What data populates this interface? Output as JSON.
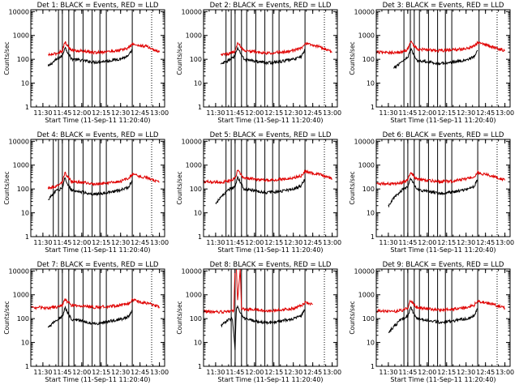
{
  "colors": {
    "events": "#000000",
    "lld": "#e00000",
    "axis": "#000000",
    "background": "#ffffff"
  },
  "chart_data": [
    {
      "type": "line",
      "detector": "1",
      "title": "Det 1: BLACK = Events, RED = LLD",
      "xlabel": "Start Time (11-Sep-11 11:20:40)",
      "ylabel": "Counts/sec",
      "xticks": [
        "11:30",
        "11:45",
        "12:00",
        "12:15",
        "12:30",
        "12:45",
        "13:00"
      ],
      "yticks": [
        "1",
        "10",
        "100",
        "1000",
        "10000"
      ],
      "ylog": true,
      "ylim": [
        1,
        12000
      ],
      "xlim": [
        "11:20:40",
        "13:04:00"
      ],
      "vlines": [
        "11:42",
        "11:45",
        "11:50",
        "11:54",
        "12:01",
        "12:08",
        "12:14",
        "12:19",
        "12:39"
      ],
      "series": [
        {
          "name": "Events",
          "x": [
            "11:34",
            "11:40",
            "11:45",
            "11:47",
            "11:52",
            "12:00",
            "12:10",
            "12:20",
            "12:30",
            "12:36",
            "12:39"
          ],
          "values": [
            50,
            95,
            140,
            320,
            105,
            90,
            75,
            85,
            105,
            135,
            250
          ]
        },
        {
          "name": "LLD",
          "x": [
            "11:34",
            "11:40",
            "11:45",
            "11:47",
            "11:52",
            "12:00",
            "12:10",
            "12:20",
            "12:30",
            "12:36",
            "12:39",
            "12:45",
            "12:50",
            "12:55",
            "13:00"
          ],
          "values": [
            150,
            170,
            230,
            520,
            240,
            220,
            190,
            210,
            240,
            300,
            430,
            370,
            350,
            260,
            200
          ]
        }
      ]
    },
    {
      "type": "line",
      "detector": "2",
      "title": "Det 2: BLACK = Events, RED = LLD",
      "xlabel": "Start Time (11-Sep-11 11:20:40)",
      "ylabel": "Counts/sec",
      "xticks": [
        "11:30",
        "11:45",
        "12:00",
        "12:15",
        "12:30",
        "12:45",
        "13:00"
      ],
      "yticks": [
        "1",
        "10",
        "100",
        "1000",
        "10000"
      ],
      "ylog": true,
      "ylim": [
        1,
        12000
      ],
      "xlim": [
        "11:20:40",
        "13:04:00"
      ],
      "vlines": [
        "11:38",
        "11:42",
        "11:45",
        "11:50",
        "11:54",
        "12:01",
        "12:08",
        "12:14",
        "12:19",
        "12:39"
      ],
      "series": [
        {
          "name": "Events",
          "x": [
            "11:34",
            "11:40",
            "11:45",
            "11:47",
            "11:52",
            "12:00",
            "12:10",
            "12:20",
            "12:30",
            "12:36",
            "12:39"
          ],
          "values": [
            60,
            90,
            135,
            300,
            100,
            85,
            70,
            80,
            100,
            130,
            260
          ]
        },
        {
          "name": "LLD",
          "x": [
            "11:34",
            "11:40",
            "11:45",
            "11:47",
            "11:52",
            "12:00",
            "12:10",
            "12:20",
            "12:30",
            "12:36",
            "12:39",
            "12:45",
            "12:50",
            "12:55",
            "13:00"
          ],
          "values": [
            160,
            170,
            220,
            480,
            230,
            210,
            180,
            200,
            230,
            290,
            450,
            380,
            340,
            260,
            200
          ]
        }
      ]
    },
    {
      "type": "line",
      "detector": "3",
      "title": "Det 3: BLACK = Events, RED = LLD",
      "xlabel": "Start Time (11-Sep-11 11:20:40)",
      "ylabel": "Counts/sec",
      "xticks": [
        "11:30",
        "11:45",
        "12:00",
        "12:15",
        "12:30",
        "12:45",
        "13:00"
      ],
      "yticks": [
        "1",
        "10",
        "100",
        "1000",
        "10000"
      ],
      "ylog": true,
      "ylim": [
        1,
        12000
      ],
      "xlim": [
        "11:20:40",
        "13:04:00"
      ],
      "vlines": [
        "11:42",
        "11:47",
        "11:50",
        "11:54",
        "12:01",
        "12:08",
        "12:14",
        "12:19",
        "12:40"
      ],
      "series": [
        {
          "name": "Events",
          "x": [
            "11:34",
            "11:40",
            "11:45",
            "11:47",
            "11:52",
            "12:00",
            "12:10",
            "12:20",
            "12:30",
            "12:36",
            "12:39"
          ],
          "values": [
            40,
            80,
            120,
            290,
            90,
            80,
            65,
            75,
            95,
            120,
            240
          ]
        },
        {
          "name": "LLD",
          "x": [
            "11:20:40",
            "11:34",
            "11:40",
            "11:45",
            "11:47",
            "11:52",
            "12:00",
            "12:10",
            "12:20",
            "12:30",
            "12:36",
            "12:39",
            "12:45",
            "12:50",
            "12:55",
            "13:00"
          ],
          "values": [
            200,
            190,
            200,
            260,
            560,
            270,
            250,
            230,
            250,
            280,
            350,
            500,
            400,
            340,
            280,
            230
          ]
        }
      ]
    },
    {
      "type": "line",
      "detector": "4",
      "title": "Det 4: BLACK = Events, RED = LLD",
      "xlabel": "Start Time (11-Sep-11 11:20:40)",
      "ylabel": "Counts/sec",
      "xticks": [
        "11:30",
        "11:45",
        "12:00",
        "12:15",
        "12:30",
        "12:45",
        "13:00"
      ],
      "yticks": [
        "1",
        "10",
        "100",
        "1000",
        "10000"
      ],
      "ylog": true,
      "ylim": [
        1,
        12000
      ],
      "xlim": [
        "11:20:40",
        "13:04:00"
      ],
      "vlines": [
        "11:38",
        "11:42",
        "11:45",
        "11:50",
        "11:54",
        "12:01",
        "12:08",
        "12:14",
        "12:19",
        "12:39"
      ],
      "series": [
        {
          "name": "Events",
          "x": [
            "11:34",
            "11:40",
            "11:45",
            "11:47",
            "11:52",
            "12:00",
            "12:10",
            "12:20",
            "12:30",
            "12:36",
            "12:39"
          ],
          "values": [
            35,
            80,
            110,
            280,
            85,
            75,
            60,
            70,
            90,
            115,
            230
          ]
        },
        {
          "name": "LLD",
          "x": [
            "11:34",
            "11:40",
            "11:45",
            "11:47",
            "11:52",
            "12:00",
            "12:10",
            "12:20",
            "12:30",
            "12:36",
            "12:39",
            "12:45",
            "12:50",
            "12:55",
            "13:00"
          ],
          "values": [
            110,
            130,
            200,
            470,
            210,
            190,
            160,
            180,
            210,
            270,
            400,
            330,
            300,
            240,
            190
          ]
        }
      ]
    },
    {
      "type": "line",
      "detector": "5",
      "title": "Det 5: BLACK = Events, RED = LLD",
      "xlabel": "Start Time (11-Sep-11 11:20:40)",
      "ylabel": "Counts/sec",
      "xticks": [
        "11:30",
        "11:45",
        "12:00",
        "12:15",
        "12:30",
        "12:45",
        "13:00"
      ],
      "yticks": [
        "1",
        "10",
        "100",
        "1000",
        "10000"
      ],
      "ylog": true,
      "ylim": [
        1,
        12000
      ],
      "xlim": [
        "11:20:40",
        "13:04:00"
      ],
      "vlines": [
        "11:38",
        "11:42",
        "11:45",
        "11:50",
        "11:54",
        "12:01",
        "12:08",
        "12:14",
        "12:19",
        "12:39"
      ],
      "series": [
        {
          "name": "Events",
          "x": [
            "11:30",
            "11:34",
            "11:40",
            "11:45",
            "11:47",
            "11:52",
            "12:00",
            "12:10",
            "12:20",
            "12:30",
            "12:36",
            "12:39"
          ],
          "values": [
            25,
            45,
            90,
            130,
            320,
            100,
            85,
            70,
            80,
            100,
            135,
            260
          ]
        },
        {
          "name": "LLD",
          "x": [
            "11:20:40",
            "11:34",
            "11:40",
            "11:45",
            "11:47",
            "11:52",
            "12:00",
            "12:10",
            "12:20",
            "12:30",
            "12:36",
            "12:39",
            "12:45",
            "12:50",
            "12:55",
            "13:00"
          ],
          "values": [
            200,
            190,
            210,
            280,
            600,
            290,
            260,
            230,
            250,
            290,
            360,
            550,
            460,
            410,
            330,
            260
          ]
        }
      ]
    },
    {
      "type": "line",
      "detector": "6",
      "title": "Det 6: BLACK = Events, RED = LLD",
      "xlabel": "Start Time (11-Sep-11 11:20:40)",
      "ylabel": "Counts/sec",
      "xticks": [
        "11:30",
        "11:45",
        "12:00",
        "12:15",
        "12:30",
        "12:45",
        "13:00"
      ],
      "yticks": [
        "1",
        "10",
        "100",
        "1000",
        "10000"
      ],
      "ylog": true,
      "ylim": [
        1,
        12000
      ],
      "xlim": [
        "11:20:40",
        "13:04:00"
      ],
      "vlines": [
        "11:42",
        "11:45",
        "11:50",
        "11:54",
        "12:01",
        "12:08",
        "12:14",
        "12:19",
        "12:39"
      ],
      "series": [
        {
          "name": "Events",
          "x": [
            "11:30",
            "11:34",
            "11:40",
            "11:45",
            "11:47",
            "11:52",
            "12:00",
            "12:10",
            "12:20",
            "12:30",
            "12:36",
            "12:39"
          ],
          "values": [
            20,
            40,
            85,
            120,
            300,
            95,
            80,
            65,
            75,
            95,
            125,
            250
          ]
        },
        {
          "name": "LLD",
          "x": [
            "11:20:40",
            "11:34",
            "11:40",
            "11:45",
            "11:47",
            "11:52",
            "12:00",
            "12:10",
            "12:20",
            "12:30",
            "12:36",
            "12:39",
            "12:45",
            "12:50",
            "12:55",
            "13:00"
          ],
          "values": [
            170,
            160,
            180,
            240,
            520,
            250,
            230,
            200,
            220,
            260,
            320,
            480,
            400,
            360,
            290,
            230
          ]
        }
      ]
    },
    {
      "type": "line",
      "detector": "7",
      "title": "Det 7: BLACK = Events, RED = LLD",
      "xlabel": "Start Time (11-Sep-11 11:20:40)",
      "ylabel": "Counts/sec",
      "xticks": [
        "11:30",
        "11:45",
        "12:00",
        "12:15",
        "12:30",
        "12:45",
        "13:00"
      ],
      "yticks": [
        "1",
        "10",
        "100",
        "1000",
        "10000"
      ],
      "ylog": true,
      "ylim": [
        1,
        12000
      ],
      "xlim": [
        "11:20:40",
        "13:04:00"
      ],
      "vlines": [
        "11:42",
        "11:45",
        "11:50",
        "11:54",
        "12:01",
        "12:08",
        "12:14",
        "12:19",
        "12:39"
      ],
      "series": [
        {
          "name": "Events",
          "x": [
            "11:34",
            "11:40",
            "11:45",
            "11:47",
            "11:52",
            "12:00",
            "12:10",
            "12:20",
            "12:30",
            "12:36",
            "12:39"
          ],
          "values": [
            40,
            85,
            120,
            290,
            95,
            80,
            60,
            75,
            95,
            120,
            240
          ]
        },
        {
          "name": "LLD",
          "x": [
            "11:20:40",
            "11:34",
            "11:40",
            "11:45",
            "11:47",
            "11:52",
            "12:00",
            "12:10",
            "12:20",
            "12:30",
            "12:36",
            "12:39",
            "12:45",
            "12:50",
            "12:55",
            "13:00"
          ],
          "values": [
            300,
            280,
            300,
            360,
            650,
            370,
            340,
            300,
            320,
            360,
            430,
            620,
            500,
            450,
            380,
            300
          ]
        }
      ]
    },
    {
      "type": "line",
      "detector": "8",
      "title": "Det 8: BLACK = Events, RED = LLD",
      "xlabel": "Start Time (11-Sep-11 11:20:40)",
      "ylabel": "Counts/sec",
      "xticks": [
        "11:30",
        "11:45",
        "12:00",
        "12:15",
        "12:30",
        "12:45",
        "13:00"
      ],
      "yticks": [
        "1",
        "10",
        "100",
        "1000",
        "10000"
      ],
      "ylog": true,
      "ylim": [
        1,
        12000
      ],
      "xlim": [
        "11:20:40",
        "13:04:00"
      ],
      "vlines": [
        "11:42",
        "11:45",
        "11:50",
        "11:54",
        "12:01",
        "12:08",
        "12:14",
        "12:19",
        "12:39"
      ],
      "series": [
        {
          "name": "Events",
          "x": [
            "11:34",
            "11:40",
            "11:43",
            "11:45",
            "11:46",
            "11:47",
            "11:52",
            "12:00",
            "12:10",
            "12:20",
            "12:30",
            "12:36",
            "12:39"
          ],
          "values": [
            50,
            90,
            100,
            5,
            280,
            300,
            100,
            80,
            65,
            80,
            100,
            125,
            250
          ]
        },
        {
          "name": "LLD",
          "x": [
            "11:20:40",
            "11:34",
            "11:40",
            "11:44",
            "11:45",
            "11:46",
            "11:47",
            "11:49",
            "11:50",
            "11:52",
            "12:00",
            "12:10",
            "12:20",
            "12:30",
            "12:36",
            "12:39",
            "12:45"
          ],
          "values": [
            200,
            190,
            200,
            210,
            12000,
            12000,
            600,
            12000,
            250,
            250,
            240,
            210,
            230,
            270,
            340,
            480,
            400
          ]
        }
      ]
    },
    {
      "type": "line",
      "detector": "9",
      "title": "Det 9: BLACK = Events, RED = LLD",
      "xlabel": "Start Time (11-Sep-11 11:20:40)",
      "ylabel": "Counts/sec",
      "xticks": [
        "11:30",
        "11:45",
        "12:00",
        "12:15",
        "12:30",
        "12:45",
        "13:00"
      ],
      "yticks": [
        "1",
        "10",
        "100",
        "1000",
        "10000"
      ],
      "ylog": true,
      "ylim": [
        1,
        12000
      ],
      "xlim": [
        "11:20:40",
        "13:04:00"
      ],
      "vlines": [
        "11:42",
        "11:45",
        "11:50",
        "11:54",
        "12:01",
        "12:08",
        "12:14",
        "12:19",
        "12:39"
      ],
      "series": [
        {
          "name": "Events",
          "x": [
            "11:30",
            "11:34",
            "11:40",
            "11:45",
            "11:47",
            "11:52",
            "12:00",
            "12:10",
            "12:20",
            "12:30",
            "12:36",
            "12:39"
          ],
          "values": [
            25,
            45,
            95,
            125,
            300,
            100,
            85,
            70,
            80,
            100,
            130,
            260
          ]
        },
        {
          "name": "LLD",
          "x": [
            "11:20:40",
            "11:34",
            "11:40",
            "11:45",
            "11:47",
            "11:52",
            "12:00",
            "12:10",
            "12:20",
            "12:30",
            "12:36",
            "12:39",
            "12:45",
            "12:50",
            "12:55",
            "13:00"
          ],
          "values": [
            210,
            200,
            220,
            270,
            580,
            290,
            260,
            230,
            250,
            290,
            360,
            560,
            460,
            420,
            340,
            270
          ]
        }
      ]
    }
  ]
}
